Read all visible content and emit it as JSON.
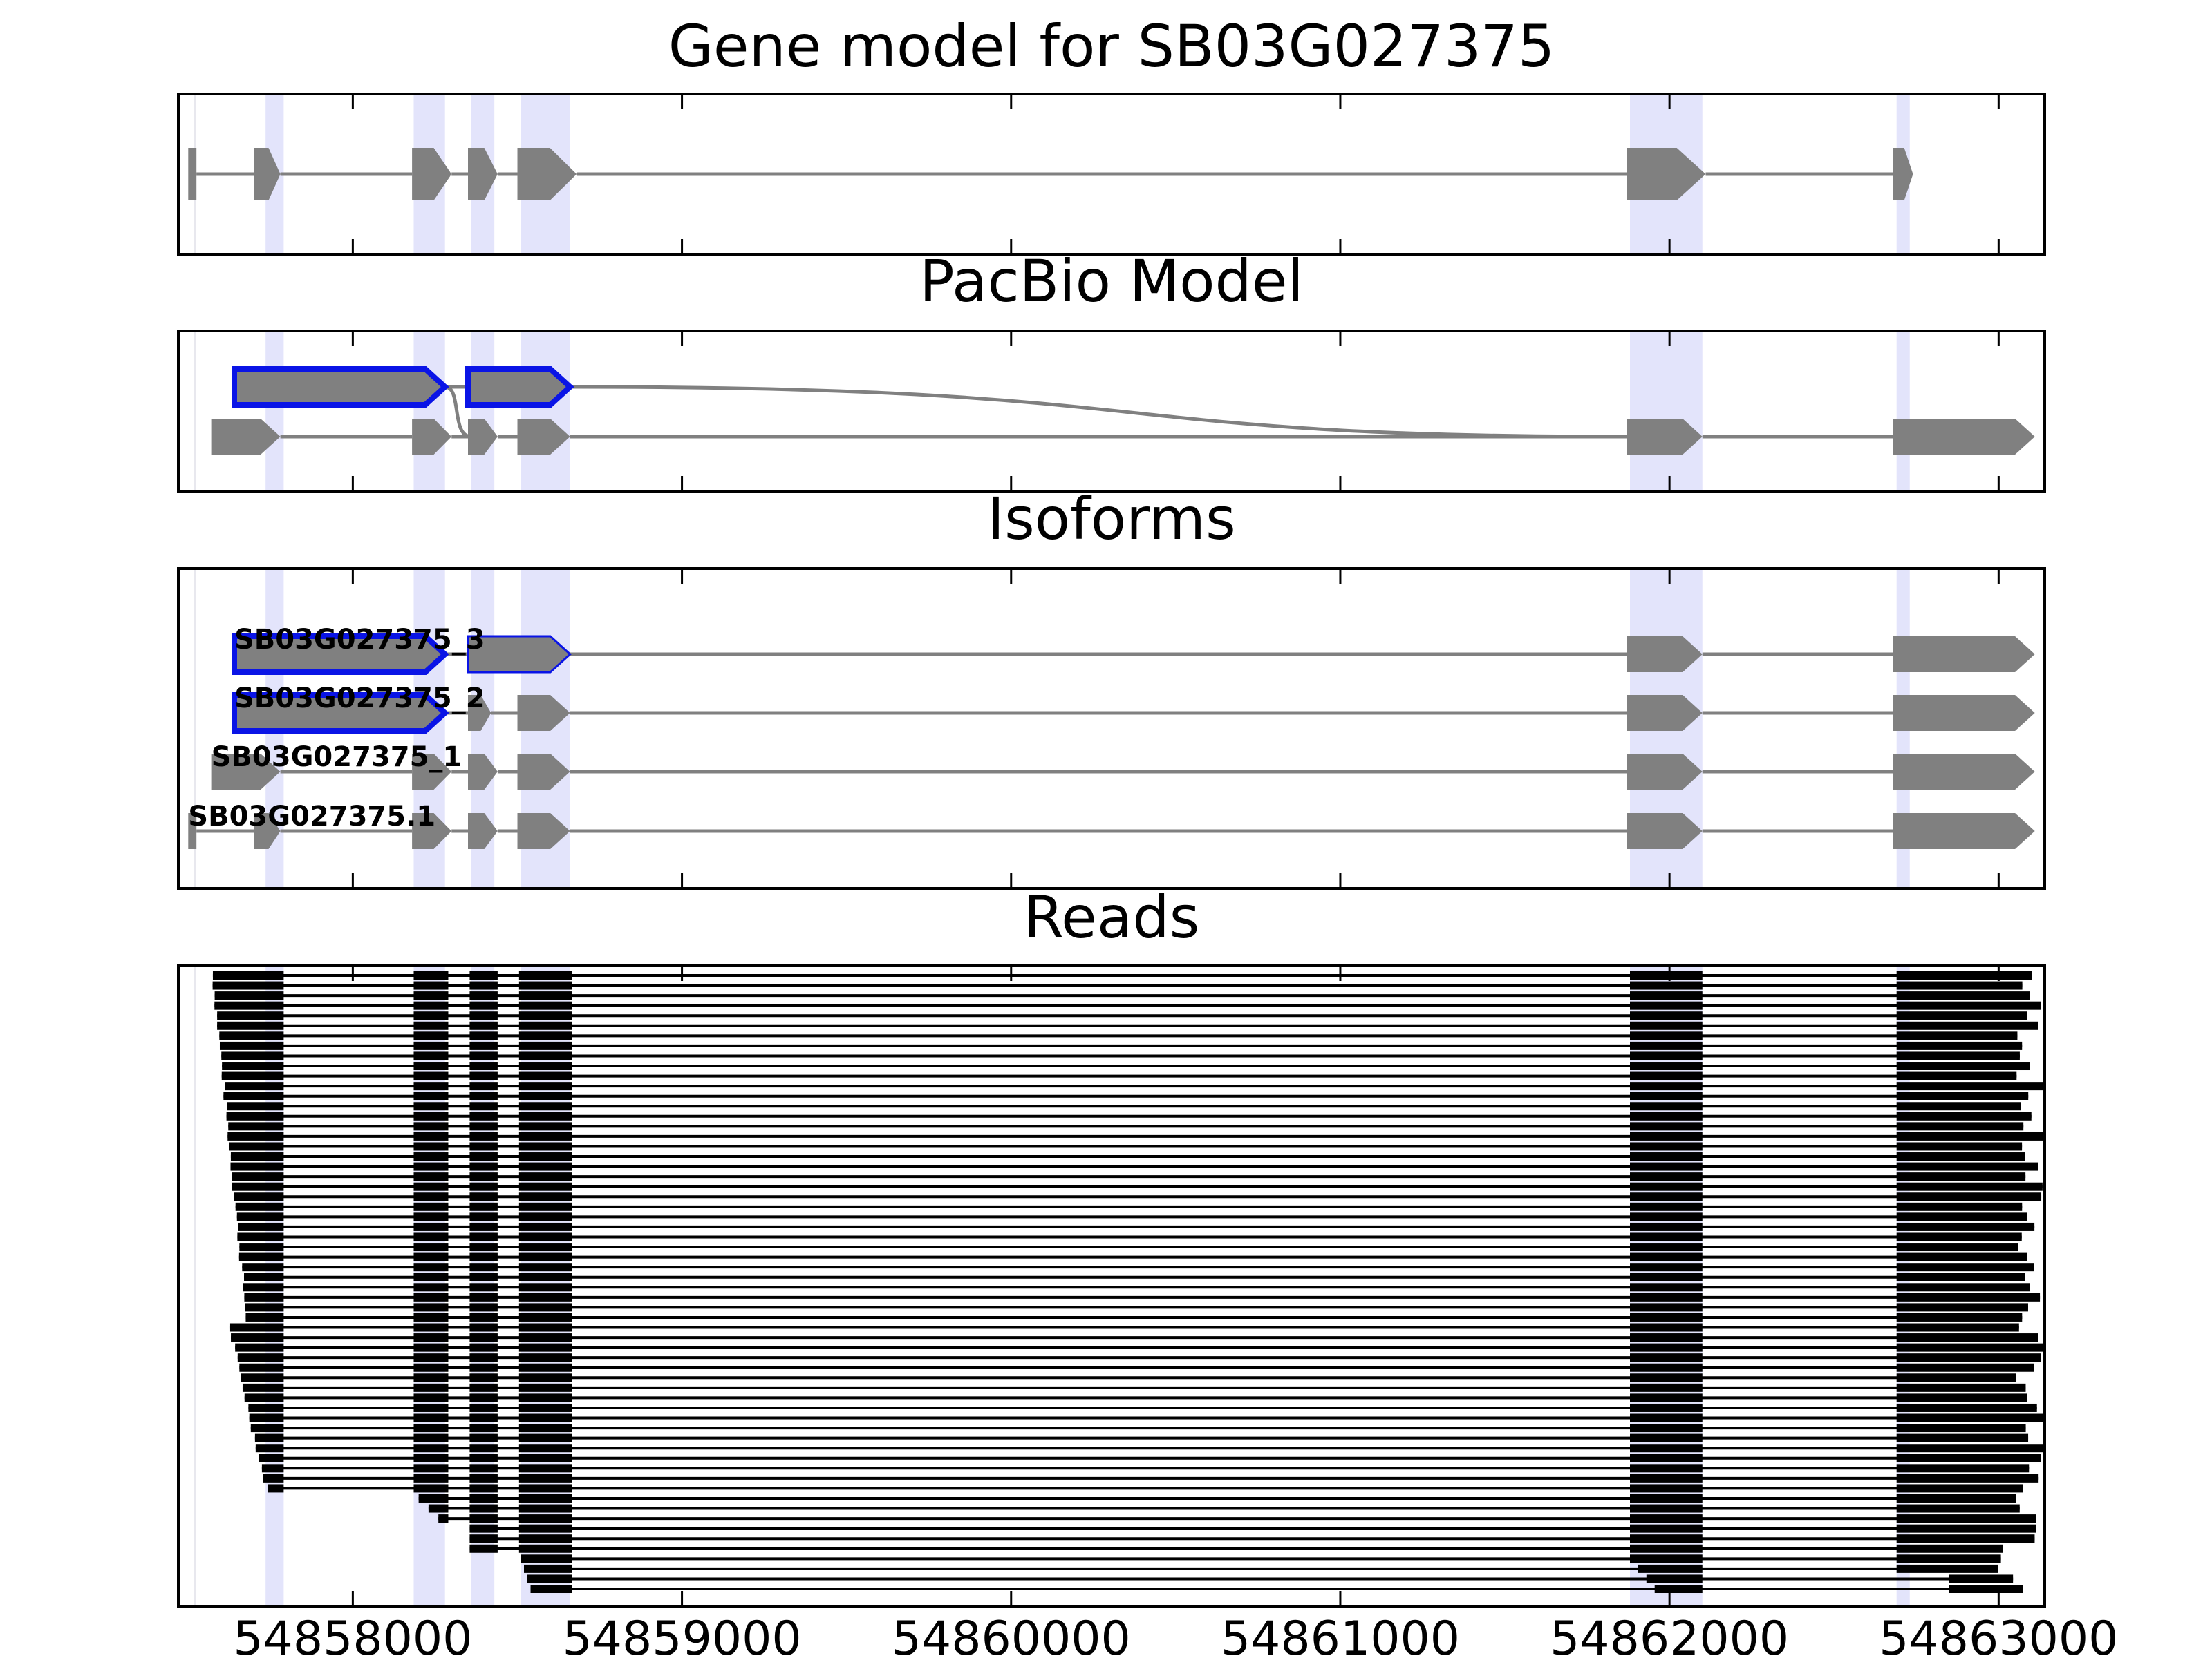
{
  "chart_data": {
    "type": "gene-model",
    "x_ticks": [
      54858000,
      54859000,
      54860000,
      54861000,
      54862000,
      54863000
    ],
    "xlim": [
      54857470,
      54863140
    ],
    "highlights": [
      [
        54857735,
        54857790
      ],
      [
        54858185,
        54858280
      ],
      [
        54858360,
        54858430
      ],
      [
        54858510,
        54858660
      ],
      [
        54861880,
        54862100
      ],
      [
        54862690,
        54862730
      ]
    ],
    "panels": [
      {
        "title": "Gene model for SB03G027375",
        "tracks": [
          {
            "label": "",
            "outline": false,
            "exons": [
              [
                54857500,
                54857525
              ],
              [
                54857700,
                54857780
              ],
              [
                54858180,
                54858300
              ],
              [
                54858350,
                54858440
              ],
              [
                54858500,
                54858680
              ],
              [
                54861870,
                54862110
              ],
              [
                54862680,
                54862740
              ]
            ]
          }
        ]
      },
      {
        "title": "PacBio Model",
        "tracks": [
          {
            "label": "",
            "outline": true,
            "exons": [
              [
                54857640,
                54858280
              ],
              [
                54858350,
                54858660
              ]
            ]
          },
          {
            "label": "",
            "outline": false,
            "exons": [
              [
                54857570,
                54857780
              ],
              [
                54858180,
                54858300
              ],
              [
                54858350,
                54858440
              ],
              [
                54858500,
                54858660
              ],
              [
                54861870,
                54862100
              ],
              [
                54862680,
                54863110
              ]
            ]
          }
        ]
      },
      {
        "title": "Isoforms",
        "tracks": [
          {
            "label": "SB03G027375_3",
            "outline": true,
            "thin_second": true,
            "exons": [
              [
                54857640,
                54858280
              ],
              [
                54858350,
                54858660
              ],
              [
                54861870,
                54862100
              ],
              [
                54862680,
                54863110
              ]
            ]
          },
          {
            "label": "SB03G027375_2",
            "outline": true,
            "exons": [
              [
                54857640,
                54858280
              ],
              [
                54858350,
                54858420
              ],
              [
                54858500,
                54858660
              ],
              [
                54861870,
                54862100
              ],
              [
                54862680,
                54863110
              ]
            ]
          },
          {
            "label": "SB03G027375_1",
            "outline": false,
            "exons": [
              [
                54857570,
                54857780
              ],
              [
                54858180,
                54858300
              ],
              [
                54858350,
                54858440
              ],
              [
                54858500,
                54858660
              ],
              [
                54861870,
                54862100
              ],
              [
                54862680,
                54863110
              ]
            ]
          },
          {
            "label": "SB03G027375.1",
            "outline": false,
            "exons": [
              [
                54857500,
                54857525
              ],
              [
                54857700,
                54857780
              ],
              [
                54858180,
                54858300
              ],
              [
                54858350,
                54858440
              ],
              [
                54858500,
                54858660
              ],
              [
                54861870,
                54862100
              ],
              [
                54862680,
                54863110
              ]
            ]
          }
        ]
      },
      {
        "title": "Reads",
        "tracks": []
      }
    ]
  }
}
